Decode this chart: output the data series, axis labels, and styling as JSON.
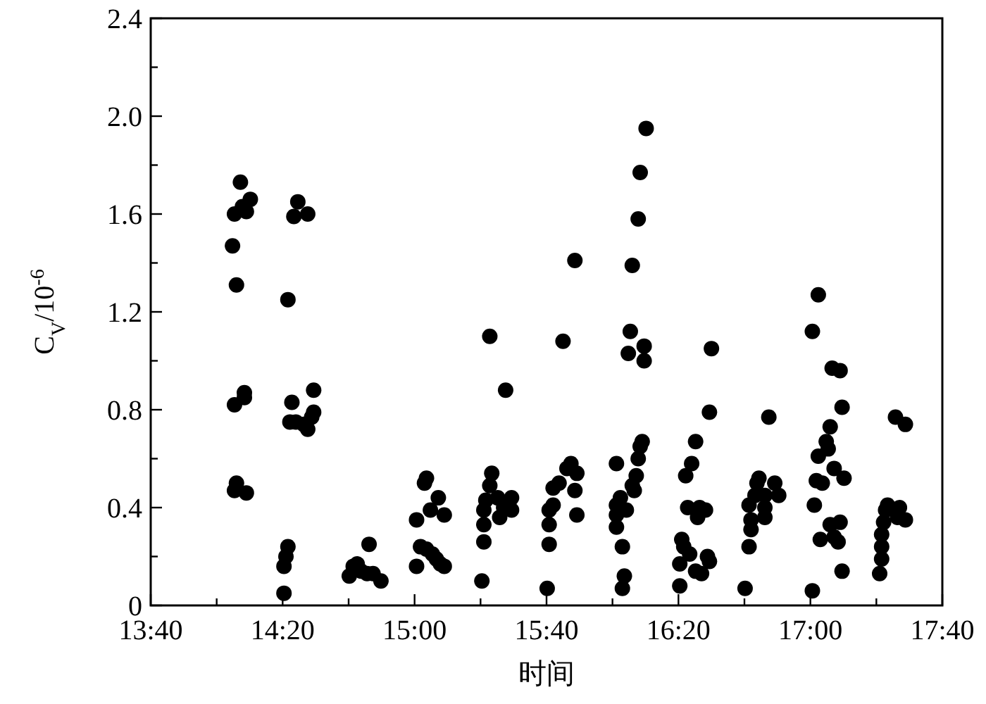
{
  "chart_data": {
    "type": "scatter",
    "xlabel": "时间",
    "ylabel": "C$_{V}$/10$^{-6}$",
    "marker": "circle",
    "xlim": [
      13.6667,
      17.6667
    ],
    "xticks": [
      {
        "value": 13.6667,
        "label": "13:40"
      },
      {
        "value": 14.0,
        "label": null
      },
      {
        "value": 14.3333,
        "label": "14:20"
      },
      {
        "value": 14.6667,
        "label": null
      },
      {
        "value": 15.0,
        "label": "15:00"
      },
      {
        "value": 15.3333,
        "label": null
      },
      {
        "value": 15.6667,
        "label": "15:40"
      },
      {
        "value": 16.0,
        "label": null
      },
      {
        "value": 16.3333,
        "label": "16:20"
      },
      {
        "value": 16.6667,
        "label": null
      },
      {
        "value": 17.0,
        "label": "17:00"
      },
      {
        "value": 17.3333,
        "label": null
      },
      {
        "value": 17.6667,
        "label": "17:40"
      }
    ],
    "ylim": [
      0,
      2.4
    ],
    "yticks": [
      0,
      {
        "value": 0.2,
        "label": null
      },
      0.4,
      {
        "value": 0.6,
        "label": null
      },
      0.8,
      {
        "value": 1.0,
        "label": null
      },
      1.2,
      {
        "value": 1.4,
        "label": null
      },
      1.6,
      {
        "value": 1.8,
        "label": null
      },
      {
        "value": 2.0,
        "label": "2.0"
      },
      {
        "value": 2.2,
        "label": null
      },
      2.4
    ],
    "series": [
      {
        "color": "#000000",
        "x": [
          14.12,
          14.17,
          14.09,
          14.15,
          14.13,
          14.08,
          14.1,
          14.09,
          14.14,
          14.14,
          14.1,
          14.09,
          14.15,
          14.41,
          14.39,
          14.46,
          14.36,
          14.38,
          14.49,
          14.49,
          14.37,
          14.4,
          14.44,
          14.46,
          14.48,
          14.36,
          14.35,
          14.34,
          14.34,
          14.77,
          14.69,
          14.67,
          14.71,
          14.76,
          14.79,
          14.83,
          14.73,
          15.06,
          15.05,
          15.12,
          15.08,
          15.15,
          15.01,
          15.03,
          15.06,
          15.09,
          15.11,
          15.15,
          15.01,
          15.13,
          15.38,
          15.46,
          15.39,
          15.38,
          15.36,
          15.35,
          15.35,
          15.35,
          15.34,
          15.42,
          15.45,
          15.49,
          15.49,
          15.43,
          15.75,
          15.79,
          15.77,
          15.82,
          15.73,
          15.7,
          15.81,
          15.7,
          15.68,
          15.82,
          15.68,
          15.68,
          15.67,
          16.17,
          16.14,
          16.13,
          15.81,
          16.1,
          16.09,
          16.16,
          16.08,
          16.16,
          16.15,
          16.14,
          16.13,
          16.02,
          16.12,
          16.1,
          16.11,
          16.04,
          16.02,
          16.07,
          16.02,
          16.02,
          16.05,
          16.06,
          16.05,
          16.42,
          16.4,
          16.37,
          16.38,
          16.43,
          16.35,
          16.36,
          16.39,
          16.34,
          16.42,
          16.34,
          16.5,
          16.49,
          16.44,
          16.47,
          16.48,
          16.49,
          16.45,
          16.79,
          16.74,
          16.73,
          16.82,
          16.72,
          16.84,
          16.77,
          16.69,
          16.77,
          16.7,
          16.77,
          16.7,
          16.69,
          16.67,
          17.04,
          17.01,
          17.11,
          17.15,
          17.16,
          17.1,
          17.08,
          17.09,
          17.04,
          17.12,
          17.17,
          17.03,
          17.06,
          17.02,
          17.15,
          17.1,
          17.05,
          17.12,
          17.14,
          17.16,
          17.01,
          17.43,
          17.48,
          17.39,
          17.45,
          17.48,
          17.38,
          17.37,
          17.36,
          17.36,
          17.36,
          17.35,
          17.44
        ],
        "values": [
          1.73,
          1.66,
          1.6,
          1.61,
          1.63,
          1.47,
          1.31,
          0.82,
          0.87,
          0.85,
          0.5,
          0.47,
          0.46,
          1.65,
          1.59,
          1.6,
          1.25,
          0.83,
          0.88,
          0.79,
          0.75,
          0.75,
          0.74,
          0.72,
          0.77,
          0.24,
          0.2,
          0.16,
          0.05,
          0.25,
          0.16,
          0.12,
          0.17,
          0.13,
          0.13,
          0.1,
          0.14,
          0.52,
          0.5,
          0.44,
          0.39,
          0.37,
          0.35,
          0.24,
          0.23,
          0.21,
          0.19,
          0.16,
          0.16,
          0.17,
          1.1,
          0.88,
          0.54,
          0.49,
          0.43,
          0.39,
          0.33,
          0.26,
          0.1,
          0.44,
          0.4,
          0.44,
          0.39,
          0.36,
          1.08,
          0.58,
          0.56,
          0.54,
          0.5,
          0.48,
          0.47,
          0.41,
          0.39,
          0.37,
          0.33,
          0.25,
          0.07,
          1.95,
          1.77,
          1.58,
          1.41,
          1.39,
          1.12,
          1.06,
          1.03,
          1.0,
          0.67,
          0.65,
          0.6,
          0.58,
          0.53,
          0.49,
          0.47,
          0.44,
          0.41,
          0.39,
          0.37,
          0.32,
          0.24,
          0.12,
          0.07,
          0.67,
          0.58,
          0.53,
          0.4,
          0.36,
          0.27,
          0.24,
          0.21,
          0.17,
          0.14,
          0.08,
          1.05,
          0.79,
          0.4,
          0.39,
          0.2,
          0.18,
          0.13,
          0.77,
          0.52,
          0.5,
          0.5,
          0.45,
          0.45,
          0.45,
          0.41,
          0.4,
          0.35,
          0.36,
          0.31,
          0.24,
          0.07,
          1.27,
          1.12,
          0.97,
          0.96,
          0.81,
          0.73,
          0.67,
          0.64,
          0.61,
          0.56,
          0.52,
          0.51,
          0.5,
          0.41,
          0.34,
          0.33,
          0.27,
          0.28,
          0.26,
          0.14,
          0.06,
          0.77,
          0.74,
          0.41,
          0.4,
          0.35,
          0.39,
          0.34,
          0.29,
          0.24,
          0.19,
          0.13,
          0.36
        ]
      }
    ]
  }
}
